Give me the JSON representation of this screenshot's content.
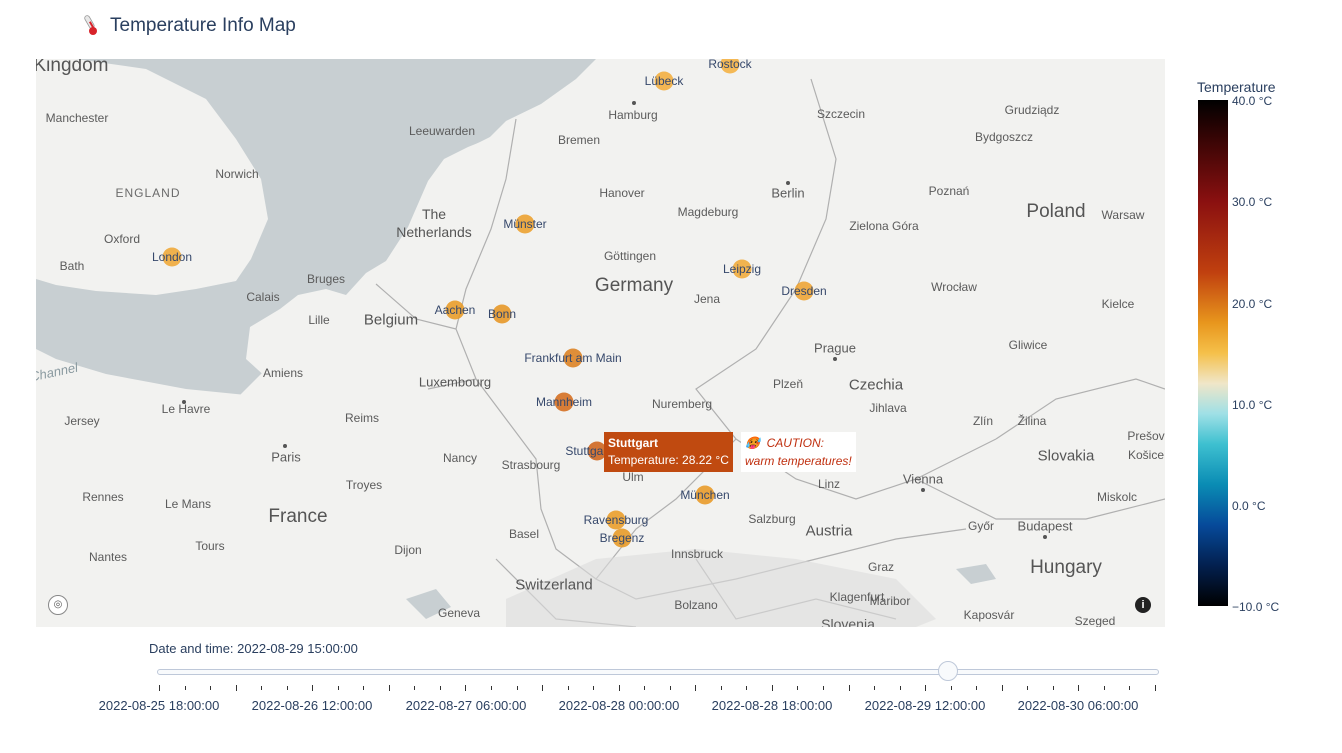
{
  "header": {
    "title": "Temperature Info Map",
    "icon": "thermometer-icon"
  },
  "map": {
    "country_labels": [
      "Germany",
      "France",
      "Poland",
      "Czechia",
      "Austria",
      "Switzerland",
      "Hungary",
      "Slovakia",
      "Belgium",
      "Luxembourg",
      "The Netherlands",
      "ENGLAND",
      "Kingdom"
    ],
    "place_labels": [
      "Manchester",
      "Norwich",
      "Oxford",
      "Bath",
      "Calais",
      "Bruges",
      "Lille",
      "Amiens",
      "Le Havre",
      "Jersey",
      "Rennes",
      "Le Mans",
      "Tours",
      "Nantes",
      "Paris",
      "Reims",
      "Troyes",
      "Nancy",
      "Strasbourg",
      "Dijon",
      "Basel",
      "Geneva",
      "Leeuwarden",
      "Bremen",
      "Hamburg",
      "Hanover",
      "Magdeburg",
      "Göttingen",
      "Jena",
      "Nuremberg",
      "Berlin",
      "Szczecin",
      "Grudziądz",
      "Bydgoszcz",
      "Poznań",
      "Zielona Góra",
      "Wrocław",
      "Warsaw",
      "Kielce",
      "Gliwice",
      "Prague",
      "Plzeň",
      "Jihlava",
      "Zlín",
      "Žilina",
      "Linz",
      "Vienna",
      "Salzburg",
      "Innsbruck",
      "Graz",
      "Klagenfurt",
      "Maribor",
      "Bolzano",
      "Ulm",
      "Győr",
      "Budapest",
      "Miskolc",
      "Košice",
      "Prešov",
      "Kaposvár",
      "Szeged",
      "Slovenia",
      "Channel"
    ],
    "cities": [
      {
        "name": "London",
        "temp": 22.0
      },
      {
        "name": "Münster",
        "temp": 23.5
      },
      {
        "name": "Aachen",
        "temp": 24.5
      },
      {
        "name": "Bonn",
        "temp": 25.2
      },
      {
        "name": "Frankfurt am Main",
        "temp": 26.5
      },
      {
        "name": "Mannheim",
        "temp": 27.6
      },
      {
        "name": "Stuttgart",
        "temp": 28.22
      },
      {
        "name": "München",
        "temp": 24.8
      },
      {
        "name": "Ravensburg",
        "temp": 24.3
      },
      {
        "name": "Bregenz",
        "temp": 25.0
      },
      {
        "name": "Leipzig",
        "temp": 21.6
      },
      {
        "name": "Dresden",
        "temp": 22.8
      },
      {
        "name": "Lübeck",
        "temp": 20.8
      },
      {
        "name": "Rostock",
        "temp": 20.2
      }
    ],
    "tooltip": {
      "city": "Stuttgart",
      "line": "Temperature: 28.22 °C",
      "caution_title": "CAUTION:",
      "caution_text": "warm temperatures!",
      "caution_icon": "hot-face-icon"
    },
    "attribution_icon": "info-icon",
    "logo_icon": "mapbox-logo-icon"
  },
  "colorbar": {
    "title": "Temperature",
    "ticks": [
      "40.0 °C",
      "30.0 °C",
      "20.0 °C",
      "10.0 °C",
      "0.0 °C",
      "−10.0 °C"
    ],
    "range": [
      -10,
      40
    ]
  },
  "slider": {
    "current_label": "Date and time: 2022-08-29 15:00:00",
    "position": 0.79,
    "tick_labels": [
      "2022-08-25 18:00:00",
      "2022-08-26 12:00:00",
      "2022-08-27 06:00:00",
      "2022-08-28 00:00:00",
      "2022-08-28 18:00:00",
      "2022-08-29 12:00:00",
      "2022-08-30 06:00:00"
    ]
  }
}
